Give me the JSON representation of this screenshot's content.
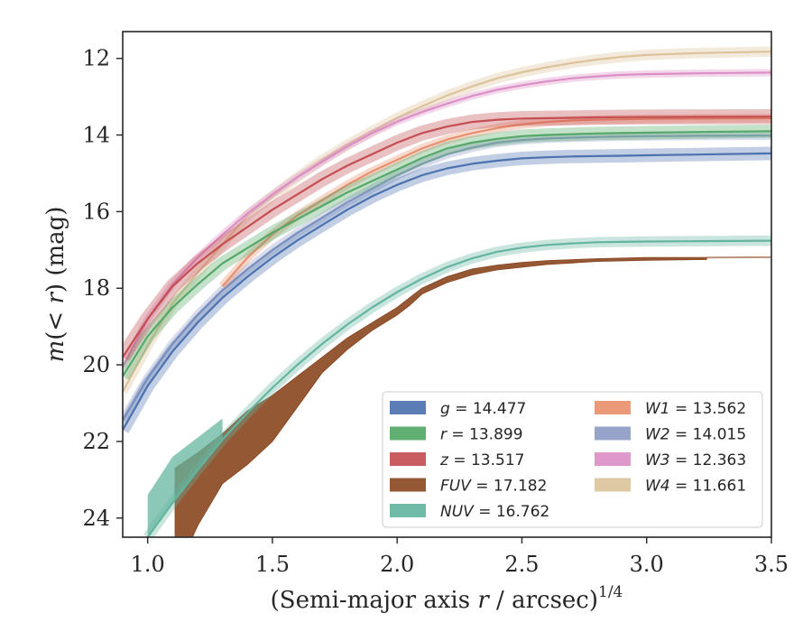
{
  "chart_data": {
    "type": "line",
    "title": "",
    "xlabel_main": "(Semi-major axis ",
    "xlabel_var": "r",
    "xlabel_tail": " / arcsec)",
    "xlabel_sup": "1/4",
    "ylabel_m": "m",
    "ylabel_mid": "(< ",
    "ylabel_r": "r",
    "ylabel_tail": ") (mag)",
    "xlim": [
      0.9,
      3.5
    ],
    "ylim": [
      24.5,
      11.3
    ],
    "y_inverted": true,
    "grid": false,
    "legend_position": "lower-right",
    "xticks": [
      1.0,
      1.5,
      2.0,
      2.5,
      3.0,
      3.5
    ],
    "xtick_labels": [
      "1.0",
      "1.5",
      "2.0",
      "2.5",
      "3.0",
      "3.5"
    ],
    "yticks": [
      12,
      14,
      16,
      18,
      20,
      22,
      24
    ],
    "ytick_labels": [
      "12",
      "14",
      "16",
      "18",
      "20",
      "22",
      "24"
    ],
    "series": [
      {
        "name": "g",
        "total": "14.477",
        "color": "#4c72b0",
        "band": 0.14,
        "x": [
          0.9,
          1.0,
          1.1,
          1.2,
          1.3,
          1.4,
          1.5,
          1.6,
          1.7,
          1.8,
          1.9,
          2.0,
          2.1,
          2.2,
          2.3,
          2.4,
          2.5,
          2.6,
          2.7,
          2.8,
          2.9,
          3.0,
          3.2,
          3.5
        ],
        "y": [
          21.7,
          20.55,
          19.65,
          18.9,
          18.25,
          17.7,
          17.2,
          16.75,
          16.35,
          15.95,
          15.6,
          15.3,
          15.05,
          14.87,
          14.75,
          14.67,
          14.61,
          14.58,
          14.56,
          14.55,
          14.54,
          14.53,
          14.51,
          14.48
        ]
      },
      {
        "name": "r",
        "total": "13.899",
        "color": "#55a868",
        "band": 0.14,
        "x": [
          0.9,
          1.0,
          1.1,
          1.2,
          1.3,
          1.4,
          1.5,
          1.6,
          1.7,
          1.8,
          1.9,
          2.0,
          2.1,
          2.2,
          2.3,
          2.4,
          2.5,
          2.6,
          2.7,
          2.8,
          2.9,
          3.0,
          3.2,
          3.5
        ],
        "y": [
          20.3,
          19.25,
          18.5,
          17.9,
          17.35,
          16.95,
          16.55,
          16.2,
          15.85,
          15.5,
          15.2,
          14.9,
          14.6,
          14.35,
          14.2,
          14.1,
          14.03,
          14.0,
          13.98,
          13.96,
          13.95,
          13.94,
          13.92,
          13.9
        ]
      },
      {
        "name": "z",
        "total": "13.517",
        "color": "#c44e52",
        "band": 0.16,
        "x": [
          0.9,
          1.0,
          1.1,
          1.2,
          1.3,
          1.4,
          1.5,
          1.6,
          1.7,
          1.8,
          1.9,
          2.0,
          2.1,
          2.2,
          2.3,
          2.4,
          2.5,
          2.6,
          2.7,
          2.8,
          2.9,
          3.0,
          3.2,
          3.5
        ],
        "y": [
          19.8,
          18.8,
          17.95,
          17.35,
          16.85,
          16.4,
          15.95,
          15.55,
          15.15,
          14.8,
          14.5,
          14.2,
          13.95,
          13.78,
          13.66,
          13.6,
          13.57,
          13.56,
          13.55,
          13.54,
          13.535,
          13.53,
          13.525,
          13.52
        ]
      },
      {
        "name": "FUV",
        "total": "17.182",
        "color": "#8c4a24",
        "band": 0.0,
        "x": [
          1.11,
          1.2,
          1.3,
          1.4,
          1.5,
          1.6,
          1.7,
          1.8,
          1.9,
          2.0,
          2.05,
          2.1,
          2.2,
          2.3,
          2.4,
          2.5,
          2.6,
          2.8,
          3.0,
          3.24
        ],
        "y": [
          22.7,
          22.3,
          21.8,
          21.2,
          20.8,
          20.3,
          19.8,
          19.3,
          18.9,
          18.5,
          18.25,
          18.0,
          17.7,
          17.5,
          17.4,
          17.33,
          17.28,
          17.23,
          17.2,
          17.2
        ],
        "y2": [
          25.5,
          24.2,
          23.1,
          22.6,
          22.0,
          21.1,
          20.2,
          19.6,
          19.1,
          18.7,
          18.45,
          18.15,
          17.85,
          17.65,
          17.52,
          17.45,
          17.38,
          17.3,
          17.27,
          17.25
        ],
        "tail_x": [
          3.24,
          3.5
        ],
        "tail_y": [
          17.2,
          17.19
        ]
      },
      {
        "name": "NUV",
        "total": "16.762",
        "color": "#64b5a0",
        "band": 0.1,
        "x": [
          1.0,
          1.1,
          1.2,
          1.3,
          1.4,
          1.5,
          1.6,
          1.7,
          1.8,
          1.9,
          2.0,
          2.1,
          2.2,
          2.3,
          2.4,
          2.5,
          2.6,
          2.7,
          2.8,
          2.9,
          3.0,
          3.2,
          3.5
        ],
        "y": [
          24.5,
          23.6,
          22.75,
          21.95,
          21.25,
          20.6,
          20.0,
          19.45,
          18.95,
          18.5,
          18.1,
          17.75,
          17.45,
          17.22,
          17.05,
          16.94,
          16.87,
          16.83,
          16.8,
          16.79,
          16.78,
          16.77,
          16.76
        ],
        "band_upper": [
          23.4,
          22.4,
          21.9,
          21.4
        ]
      },
      {
        "name": "W1",
        "total": "13.562",
        "color": "#e8906e",
        "band": 0.08,
        "x": [
          1.3,
          1.4,
          1.5,
          1.6,
          1.7,
          1.8,
          1.9,
          2.0,
          2.1,
          2.2,
          2.3,
          2.4,
          2.5,
          2.6,
          2.7,
          2.8,
          2.9,
          3.0,
          3.2,
          3.5
        ],
        "y": [
          17.95,
          17.2,
          16.6,
          16.1,
          15.7,
          15.3,
          14.95,
          14.65,
          14.35,
          14.12,
          13.95,
          13.82,
          13.72,
          13.66,
          13.62,
          13.6,
          13.59,
          13.58,
          13.57,
          13.56
        ]
      },
      {
        "name": "W2",
        "total": "14.015",
        "color": "#8e9cc6",
        "band": 0.08,
        "x": [
          0.9,
          1.0,
          1.1,
          1.2,
          1.3,
          1.4,
          1.5,
          1.6,
          1.7,
          1.8,
          1.9,
          2.0,
          2.1,
          2.2,
          2.3,
          2.4,
          2.5,
          2.6,
          2.7,
          2.8,
          2.9,
          3.0,
          3.2,
          3.5
        ],
        "y": [
          21.45,
          20.35,
          19.45,
          18.7,
          18.05,
          17.5,
          17.0,
          16.55,
          16.15,
          15.75,
          15.4,
          15.05,
          14.75,
          14.5,
          14.33,
          14.2,
          14.13,
          14.09,
          14.07,
          14.05,
          14.04,
          14.03,
          14.02,
          14.015
        ]
      },
      {
        "name": "W3",
        "total": "12.363",
        "color": "#dc8fc6",
        "band": 0.06,
        "x": [
          0.9,
          1.0,
          1.1,
          1.2,
          1.3,
          1.4,
          1.5,
          1.6,
          1.7,
          1.8,
          1.9,
          2.0,
          2.1,
          2.2,
          2.3,
          2.4,
          2.5,
          2.6,
          2.7,
          2.8,
          2.9,
          3.0,
          3.2,
          3.5
        ],
        "y": [
          20.05,
          18.8,
          17.9,
          17.2,
          16.6,
          16.05,
          15.55,
          15.1,
          14.7,
          14.3,
          13.95,
          13.65,
          13.4,
          13.18,
          12.98,
          12.82,
          12.7,
          12.6,
          12.52,
          12.47,
          12.43,
          12.41,
          12.39,
          12.37
        ]
      },
      {
        "name": "W4",
        "total": "11.661",
        "color": "#dcc39c",
        "band": 0.1,
        "x": [
          0.9,
          1.0,
          1.1,
          1.2,
          1.3,
          1.4,
          1.5,
          1.6,
          1.7,
          1.8,
          1.9,
          2.0,
          2.1,
          2.2,
          2.3,
          2.4,
          2.5,
          2.6,
          2.7,
          2.8,
          2.9,
          3.0,
          3.2,
          3.5
        ],
        "y": [
          20.7,
          19.5,
          18.4,
          17.6,
          16.85,
          16.1,
          15.6,
          15.1,
          14.65,
          14.25,
          13.9,
          13.55,
          13.25,
          12.97,
          12.73,
          12.52,
          12.36,
          12.23,
          12.12,
          12.03,
          11.96,
          11.91,
          11.86,
          11.82
        ]
      }
    ],
    "legend_labels": [
      {
        "var": "g",
        "text": " = 14.477"
      },
      {
        "var": "r",
        "text": " = 13.899"
      },
      {
        "var": "z",
        "text": " = 13.517"
      },
      {
        "var": "FUV",
        "text": " = 17.182"
      },
      {
        "var": "NUV",
        "text": " = 16.762"
      },
      {
        "var": "W1",
        "text": " = 13.562"
      },
      {
        "var": "W2",
        "text": " = 14.015"
      },
      {
        "var": "W3",
        "text": " = 12.363"
      },
      {
        "var": "W4",
        "text": " = 11.661"
      }
    ]
  }
}
